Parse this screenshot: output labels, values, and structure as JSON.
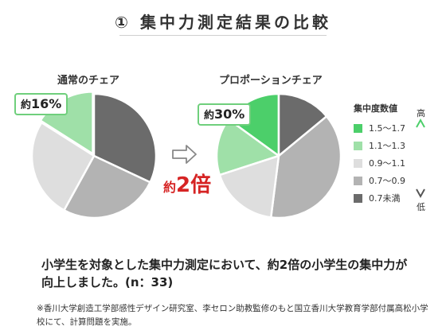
{
  "header": {
    "title": "① 集中力測定結果の比較"
  },
  "left": {
    "label": "通常のチェア",
    "callout_prefix": "約",
    "callout_value": "16%"
  },
  "right": {
    "label": "プロポーションチェア",
    "callout_prefix": "約",
    "callout_value": "30%"
  },
  "comparison": {
    "prefix": "約",
    "value": "2倍"
  },
  "legend": {
    "title": "集中度数値",
    "high_label": "高",
    "low_label": "低",
    "items": [
      {
        "label": "1.5〜1.7",
        "color": "#4ccf6a"
      },
      {
        "label": "1.1〜1.3",
        "color": "#9fe0a8"
      },
      {
        "label": "0.9〜1.1",
        "color": "#dedede"
      },
      {
        "label": "0.7〜0.9",
        "color": "#b3b3b3"
      },
      {
        "label": "0.7未満",
        "color": "#6b6b6b"
      }
    ]
  },
  "chart_data": [
    {
      "type": "pie",
      "title": "通常のチェア",
      "categories": [
        "1.5〜1.7",
        "1.1〜1.3",
        "0.9〜1.1",
        "0.7〜0.9",
        "0.7未満"
      ],
      "values": [
        0,
        16,
        26,
        26,
        32
      ],
      "colors": [
        "#4ccf6a",
        "#9fe0a8",
        "#dedede",
        "#b3b3b3",
        "#6b6b6b"
      ],
      "annotation": "約16%"
    },
    {
      "type": "pie",
      "title": "プロポーションチェア",
      "categories": [
        "1.5〜1.7",
        "1.1〜1.3",
        "0.9〜1.1",
        "0.7〜0.9",
        "0.7未満"
      ],
      "values": [
        15,
        15,
        18,
        38,
        14
      ],
      "colors": [
        "#4ccf6a",
        "#9fe0a8",
        "#dedede",
        "#b3b3b3",
        "#6b6b6b"
      ],
      "annotation": "約30%"
    }
  ],
  "description": "小学生を対象とした集中力測定において、約2倍の小学生の集中力が向上しました。(n：33)",
  "footnote": "※香川大学創造工学部感性デザイン研究室、李セロン助教監修のもと国立香川大学教育学部付属高松小学校にて、計算問題を実施。"
}
